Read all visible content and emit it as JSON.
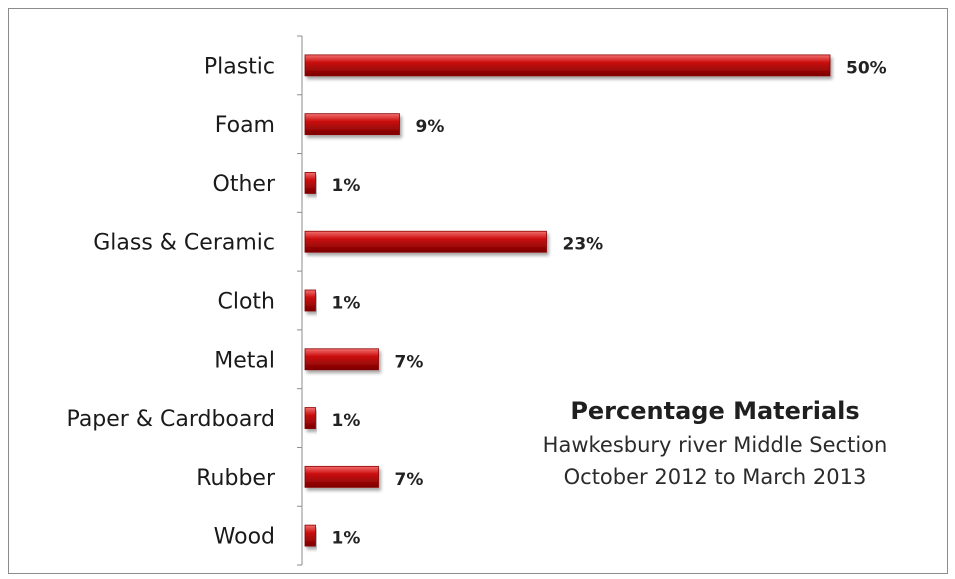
{
  "chart_data": {
    "type": "bar",
    "orientation": "horizontal",
    "categories": [
      "Plastic",
      "Foam",
      "Other",
      "Glass & Ceramic",
      "Cloth",
      "Metal",
      "Paper & Cardboard",
      "Rubber",
      "Wood"
    ],
    "values": [
      50,
      9,
      1,
      23,
      1,
      7,
      1,
      7,
      1
    ],
    "value_labels": [
      "50%",
      "9%",
      "1%",
      "23%",
      "1%",
      "7%",
      "1%",
      "7%",
      "1%"
    ],
    "unit": "%",
    "xlim": [
      0,
      50
    ],
    "title": "Percentage Materials",
    "subtitle_lines": [
      "Hawkesbury river Middle Section",
      "October 2012 to March 2013"
    ],
    "grid": false,
    "legend": "none",
    "bar_color": "#cc1111",
    "bar_highlight": "#f27070",
    "bar_shadow": "#7a0000"
  }
}
